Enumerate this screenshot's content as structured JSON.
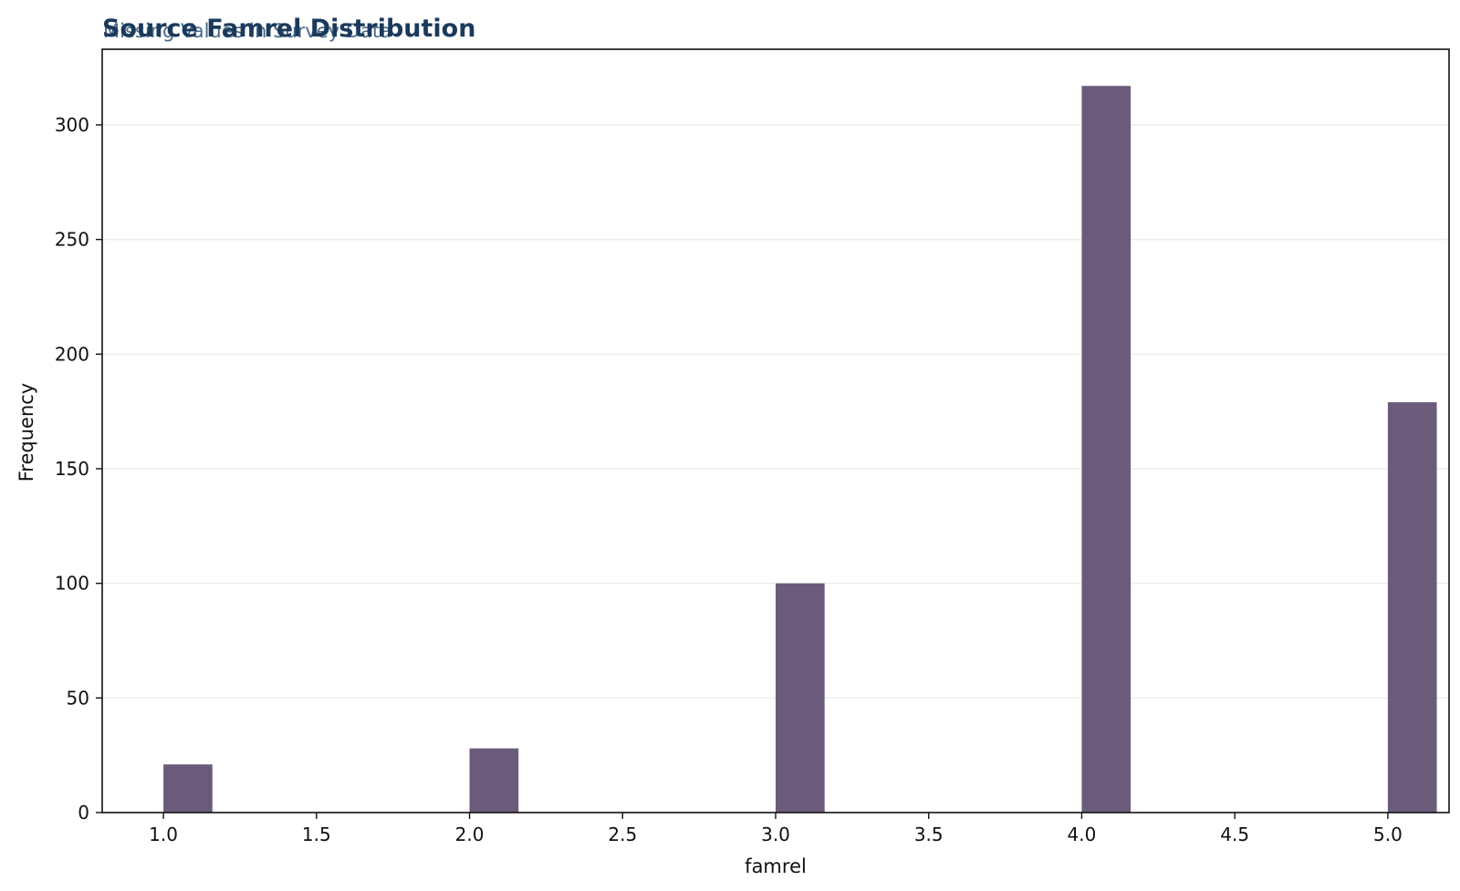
{
  "chart_data": {
    "type": "bar",
    "title": "Source Famrel Distribution",
    "subtitle": "Missing Values in Survey Data",
    "xlabel": "famrel",
    "ylabel": "Frequency",
    "xlim": [
      0.8,
      5.2
    ],
    "ylim": [
      0,
      333
    ],
    "xticks": [
      1.0,
      1.5,
      2.0,
      2.5,
      3.0,
      3.5,
      4.0,
      4.5,
      5.0
    ],
    "xtick_labels": [
      "1.0",
      "1.5",
      "2.0",
      "2.5",
      "3.0",
      "3.5",
      "4.0",
      "4.5",
      "5.0"
    ],
    "yticks": [
      0,
      50,
      100,
      150,
      200,
      250,
      300
    ],
    "ytick_labels": [
      "0",
      "50",
      "100",
      "150",
      "200",
      "250",
      "300"
    ],
    "bar_width": 0.16,
    "x": [
      1.0,
      2.0,
      3.0,
      4.0,
      5.0
    ],
    "values": [
      21,
      28,
      100,
      317,
      179
    ],
    "grid": "horizontal",
    "colors": {
      "bar": "#6b5b7b",
      "grid": "#ececec",
      "axis": "#111111",
      "title": "#1a3a5c",
      "subtitle": "#4a6b8a"
    }
  }
}
